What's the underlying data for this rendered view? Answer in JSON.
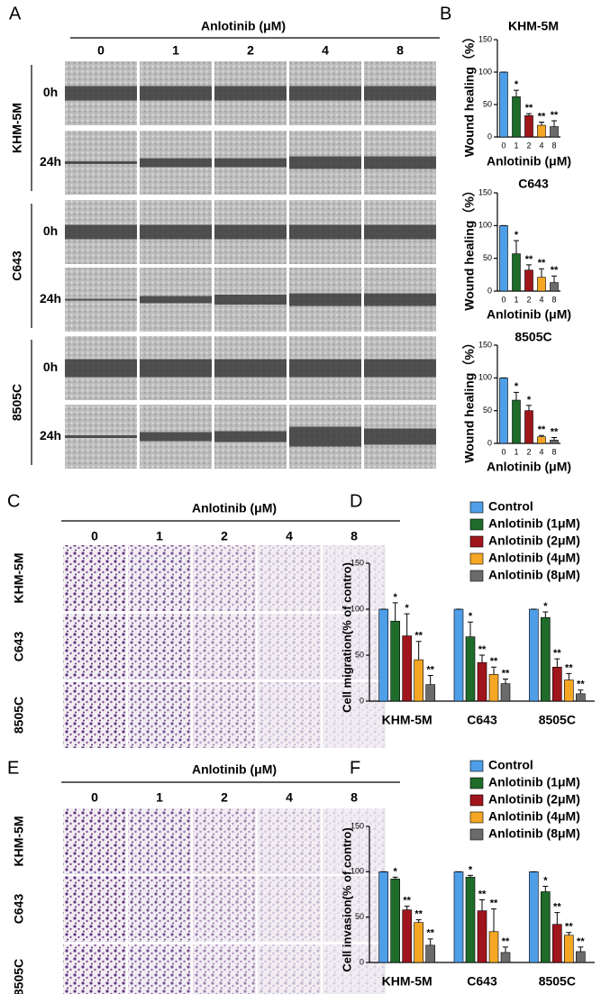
{
  "panel_labels": [
    "A",
    "B",
    "C",
    "D",
    "E",
    "F"
  ],
  "wound_images": {
    "header": "Anlotinib (μM)",
    "columns": [
      "0",
      "1",
      "2",
      "4",
      "8"
    ],
    "cell_lines": [
      "KHM-5M",
      "C643",
      "8505C"
    ],
    "times": [
      "0h",
      "24h"
    ]
  },
  "transwell_migration_images": {
    "header": "Anlotinib (μM)",
    "columns": [
      "0",
      "1",
      "2",
      "4",
      "8"
    ],
    "cell_lines": [
      "KHM-5M",
      "C643",
      "8505C"
    ]
  },
  "transwell_invasion_images": {
    "header": "Anlotinib (μM)",
    "columns": [
      "0",
      "1",
      "2",
      "4",
      "8"
    ],
    "cell_lines": [
      "KHM-5M",
      "C643",
      "8505C"
    ]
  },
  "chart_data": [
    {
      "type": "bar",
      "title": "KHM-5M",
      "y_label": "Wound healing（%）",
      "x_label": "Anlotinib (μM)",
      "categories": [
        "0",
        "1",
        "2",
        "4",
        "8"
      ],
      "values": [
        100,
        62,
        33,
        18,
        16
      ],
      "errors": [
        0,
        10,
        3,
        5,
        9
      ],
      "significance": [
        null,
        "*",
        "**",
        "**",
        "**"
      ],
      "colors": [
        "#4e9ee8",
        "#1e6b2a",
        "#a0151c",
        "#f5a623",
        "#6b6b6b"
      ],
      "ylim": [
        0,
        150
      ],
      "yticks": [
        0,
        50,
        100,
        150
      ]
    },
    {
      "type": "bar",
      "title": "C643",
      "y_label": "Wound healing（%）",
      "x_label": "Anlotinib (μM)",
      "categories": [
        "0",
        "1",
        "2",
        "4",
        "8"
      ],
      "values": [
        100,
        57,
        32,
        21,
        13
      ],
      "errors": [
        0,
        20,
        8,
        13,
        10
      ],
      "significance": [
        null,
        "*",
        "**",
        "**",
        "**"
      ],
      "colors": [
        "#4e9ee8",
        "#1e6b2a",
        "#a0151c",
        "#f5a623",
        "#6b6b6b"
      ],
      "ylim": [
        0,
        150
      ],
      "yticks": [
        0,
        50,
        100,
        150
      ]
    },
    {
      "type": "bar",
      "title": "8505C",
      "y_label": "Wound healing（%）",
      "x_label": "Anlotinib (μM)",
      "categories": [
        "0",
        "1",
        "2",
        "4",
        "8"
      ],
      "values": [
        100,
        66,
        50,
        10,
        5
      ],
      "errors": [
        0,
        12,
        8,
        2,
        4
      ],
      "significance": [
        null,
        "*",
        "*",
        "**",
        "**"
      ],
      "colors": [
        "#4e9ee8",
        "#1e6b2a",
        "#a0151c",
        "#f5a623",
        "#6b6b6b"
      ],
      "ylim": [
        0,
        150
      ],
      "yticks": [
        0,
        50,
        100,
        150
      ]
    },
    {
      "type": "grouped_bar",
      "y_label": "Cell migration(% of contro)",
      "categories": [
        "KHM-5M",
        "C643",
        "8505C"
      ],
      "legend": "upper right",
      "ylim": [
        0,
        150
      ],
      "yticks": [
        0,
        50,
        100,
        150
      ],
      "series": [
        {
          "name": "Control",
          "color": "#4e9ee8",
          "values": [
            100,
            100,
            100
          ],
          "errors": [
            0,
            0,
            0
          ]
        },
        {
          "name": "Anlotinib (1μM)",
          "color": "#1e6b2a",
          "values": [
            87,
            70,
            91
          ],
          "errors": [
            20,
            16,
            6
          ],
          "significance": [
            "*",
            "*",
            "*"
          ]
        },
        {
          "name": "Anlotinib (2μM)",
          "color": "#a0151c",
          "values": [
            71,
            42,
            37
          ],
          "errors": [
            24,
            8,
            9
          ],
          "significance": [
            "*",
            "**",
            "**"
          ]
        },
        {
          "name": "Anlotinib (4μM)",
          "color": "#f5a623",
          "values": [
            45,
            29,
            23
          ],
          "errors": [
            20,
            8,
            7
          ],
          "significance": [
            "**",
            "**",
            "**"
          ]
        },
        {
          "name": "Anlotinib (8μM)",
          "color": "#6b6b6b",
          "values": [
            18,
            19,
            8
          ],
          "errors": [
            10,
            5,
            4
          ],
          "significance": [
            "**",
            "**",
            "**"
          ]
        }
      ]
    },
    {
      "type": "grouped_bar",
      "y_label": "Cell invasion(% of contro)",
      "categories": [
        "KHM-5M",
        "C643",
        "8505C"
      ],
      "legend": "upper right",
      "ylim": [
        0,
        150
      ],
      "yticks": [
        0,
        50,
        100,
        150
      ],
      "series": [
        {
          "name": "Control",
          "color": "#4e9ee8",
          "values": [
            100,
            100,
            100
          ],
          "errors": [
            0,
            0,
            0
          ]
        },
        {
          "name": "Anlotinib (1μM)",
          "color": "#1e6b2a",
          "values": [
            92,
            94,
            78
          ],
          "errors": [
            2,
            2,
            6
          ],
          "significance": [
            "*",
            "*",
            "*"
          ]
        },
        {
          "name": "Anlotinib (2μM)",
          "color": "#a0151c",
          "values": [
            58,
            57,
            42
          ],
          "errors": [
            4,
            12,
            13
          ],
          "significance": [
            "**",
            "**",
            "**"
          ]
        },
        {
          "name": "Anlotinib (4μM)",
          "color": "#f5a623",
          "values": [
            44,
            34,
            30
          ],
          "errors": [
            3,
            25,
            3
          ],
          "significance": [
            "**",
            "**",
            "**"
          ]
        },
        {
          "name": "Anlotinib (8μM)",
          "color": "#6b6b6b",
          "values": [
            19,
            11,
            12
          ],
          "errors": [
            7,
            6,
            5
          ],
          "significance": [
            "**",
            "**",
            "**"
          ]
        }
      ]
    }
  ]
}
